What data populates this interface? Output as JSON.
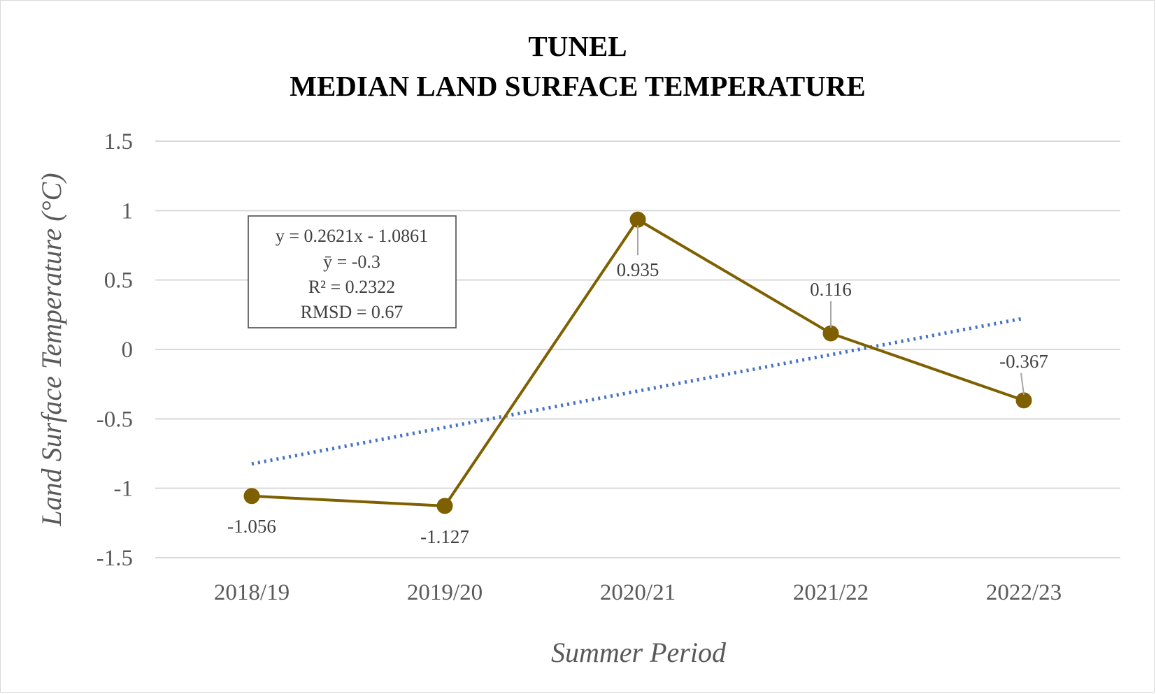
{
  "chart_data": {
    "type": "line",
    "title": [
      "TUNEL",
      "MEDIAN LAND SURFACE TEMPERATURE"
    ],
    "xlabel": "Summer Period",
    "ylabel": "Land Surface Temperature (°C)",
    "categories": [
      "2018/19",
      "2019/20",
      "2020/21",
      "2021/22",
      "2022/23"
    ],
    "series": [
      {
        "values": [
          -1.056,
          -1.127,
          0.935,
          0.116,
          -0.367
        ],
        "color": "#7f6000"
      }
    ],
    "data_labels": [
      "-1.056",
      "-1.127",
      "0.935",
      "0.116",
      "-0.367"
    ],
    "trendline": {
      "style": "dotted",
      "color": "#4472c4",
      "slope": 0.2621,
      "intercept": -1.0861
    },
    "stats_box": [
      "y = 0.2621x - 1.0861",
      "ȳ = -0.3",
      "R² = 0.2322",
      "RMSD = 0.67"
    ],
    "ylim": [
      -1.5,
      1.5
    ],
    "yticks": [
      1.5,
      1,
      0.5,
      0,
      -0.5,
      -1,
      -1.5
    ],
    "ytick_labels": [
      "1.5",
      "1",
      "0.5",
      "0",
      "-0.5",
      "-1",
      "-1.5"
    ],
    "grid": true,
    "legend": false
  }
}
